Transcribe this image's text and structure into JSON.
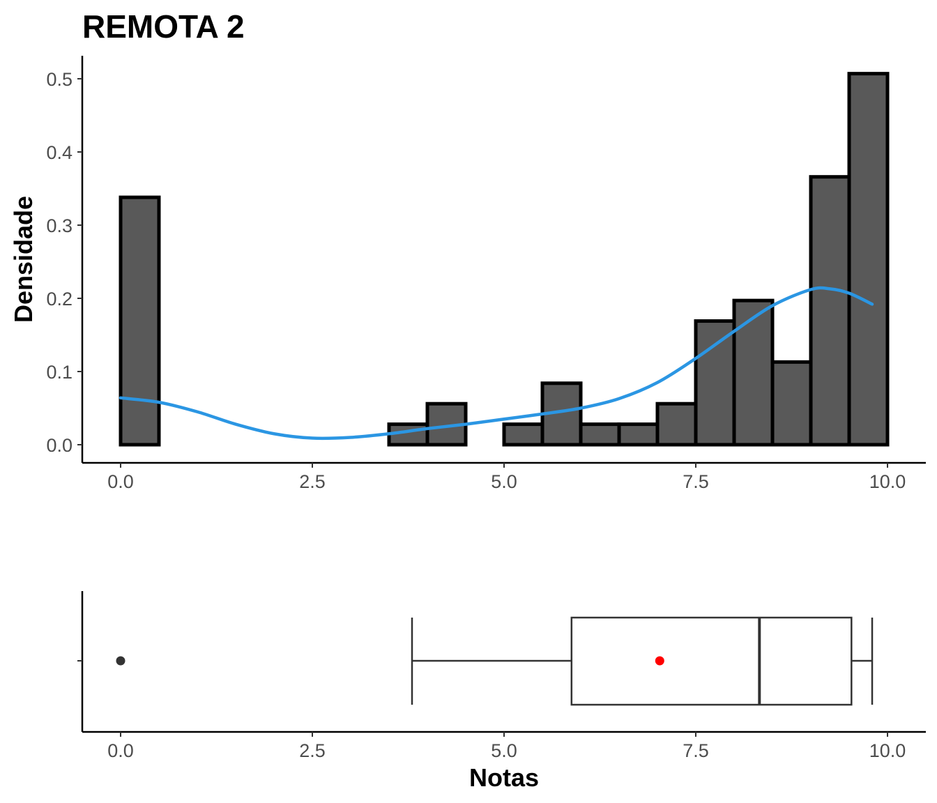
{
  "chart_data": [
    {
      "type": "histogram",
      "title": "REMOTA 2",
      "xlabel": "",
      "ylabel": "Densidade",
      "xlim": [
        0,
        10
      ],
      "ylim": [
        0,
        0.5
      ],
      "x_ticks": [
        "0.0",
        "2.5",
        "5.0",
        "7.5",
        "10.0"
      ],
      "y_ticks": [
        "0.0",
        "0.1",
        "0.2",
        "0.3",
        "0.4",
        "0.5"
      ],
      "grid": false,
      "bin_edges": [
        0,
        0.5,
        1.0,
        1.5,
        2.0,
        2.5,
        3.0,
        3.5,
        4.0,
        4.5,
        5.0,
        5.5,
        6.0,
        6.5,
        7.0,
        7.5,
        8.0,
        8.5,
        9.0,
        9.5,
        10.0
      ],
      "values": [
        0.338,
        0,
        0,
        0,
        0,
        0,
        0,
        0.028,
        0.056,
        0,
        0.028,
        0.084,
        0.028,
        0.028,
        0.056,
        0.169,
        0.197,
        0.113,
        0.366,
        0.507
      ],
      "density_curve": {
        "color": "#2b96e3",
        "x": [
          0,
          0.5,
          1.0,
          1.5,
          2.0,
          2.5,
          3.0,
          3.5,
          4.0,
          4.5,
          5.0,
          5.5,
          6.0,
          6.5,
          7.0,
          7.5,
          8.0,
          8.5,
          9.0,
          9.25,
          9.5,
          9.8
        ],
        "y": [
          0.064,
          0.058,
          0.045,
          0.028,
          0.015,
          0.009,
          0.01,
          0.015,
          0.022,
          0.028,
          0.035,
          0.042,
          0.05,
          0.063,
          0.085,
          0.118,
          0.155,
          0.19,
          0.212,
          0.213,
          0.207,
          0.192
        ]
      }
    },
    {
      "type": "boxplot",
      "xlabel": "Notas",
      "xlim": [
        0,
        10
      ],
      "x_ticks": [
        "0.0",
        "2.5",
        "5.0",
        "7.5",
        "10.0"
      ],
      "whisker_low": 3.8,
      "q1": 5.88,
      "median": 8.33,
      "q3": 9.53,
      "whisker_high": 9.8,
      "outliers": [
        0.0
      ],
      "mean": 7.03,
      "mean_color": "#ff0000"
    }
  ]
}
